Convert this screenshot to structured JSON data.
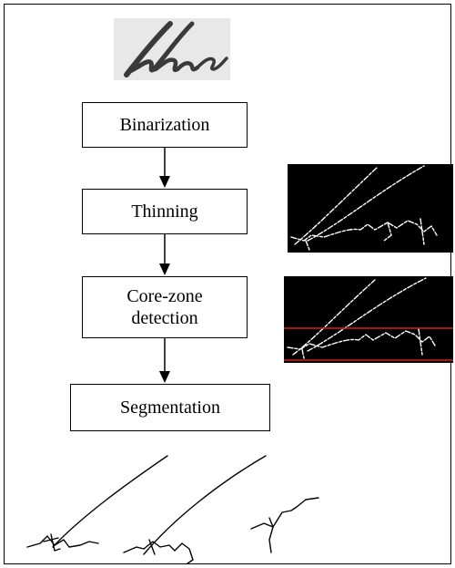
{
  "flowchart": {
    "steps": [
      {
        "id": "binarization",
        "label": "Binarization"
      },
      {
        "id": "thinning",
        "label": "Thinning"
      },
      {
        "id": "core-zone-detection",
        "label": "Core-zone\ndetection"
      },
      {
        "id": "segmentation",
        "label": "Segmentation"
      }
    ]
  },
  "images": {
    "input": "handwritten-word-scan",
    "thinned": "thinned-skeleton-image",
    "core_zone": "core-zone-lines-image",
    "segments": "segmented-strokes-image"
  },
  "colors": {
    "border": "#000000",
    "panel_background": "#000000",
    "skeleton_stroke": "#ffffff",
    "core_zone_line": "#d0201c",
    "ink": "#000000"
  }
}
